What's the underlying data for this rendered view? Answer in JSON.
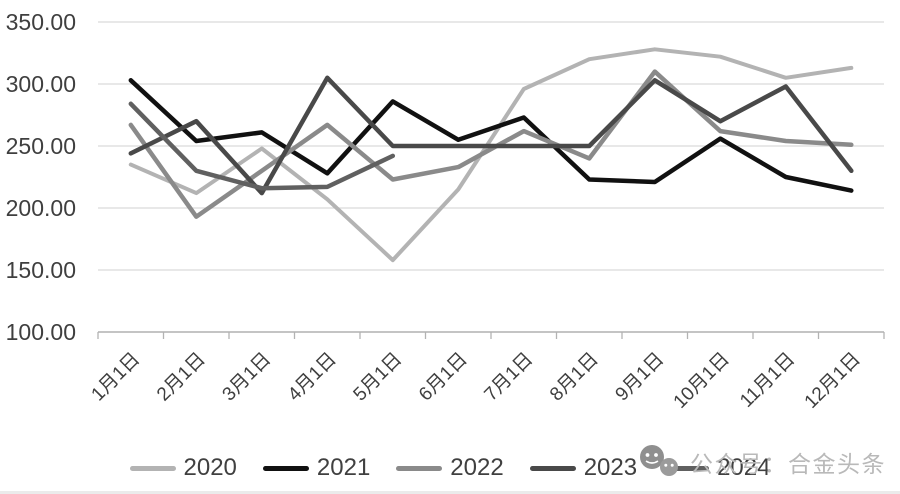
{
  "chart_data": {
    "type": "line",
    "title": "",
    "xlabel": "",
    "ylabel": "",
    "grid": "horizontal",
    "legend_position": "bottom",
    "x_labels": [
      "1月1日",
      "2月1日",
      "3月1日",
      "4月1日",
      "5月1日",
      "6月1日",
      "7月1日",
      "8月1日",
      "9月1日",
      "10月1日",
      "11月1日",
      "12月1日"
    ],
    "y_axis": {
      "min": 100,
      "max": 350,
      "step": 50,
      "tick_labels": [
        "350.00",
        "300.00",
        "250.00",
        "200.00",
        "150.00",
        "100.00"
      ]
    },
    "series": [
      {
        "name": "2020",
        "color": "#b3b3b3",
        "width": 4,
        "values": [
          235,
          212,
          248,
          207,
          158,
          215,
          296,
          320,
          328,
          322,
          305,
          313
        ]
      },
      {
        "name": "2021",
        "color": "#111111",
        "width": 4.5,
        "values": [
          303,
          254,
          261,
          228,
          286,
          255,
          273,
          223,
          221,
          256,
          225,
          214
        ]
      },
      {
        "name": "2022",
        "color": "#8a8a8a",
        "width": 4.5,
        "values": [
          267,
          193,
          230,
          267,
          223,
          233,
          262,
          240,
          310,
          262,
          254,
          251
        ]
      },
      {
        "name": "2023",
        "color": "#494949",
        "width": 4.5,
        "values": [
          244,
          270,
          212,
          305,
          250,
          250,
          250,
          250,
          303,
          270,
          298,
          230
        ]
      },
      {
        "name": "2024",
        "color": "#606060",
        "width": 4.5,
        "values": [
          284,
          230,
          216,
          217,
          242,
          null,
          null,
          null,
          null,
          null,
          null,
          null
        ]
      }
    ]
  },
  "watermark": {
    "text": "公众号：合金头条",
    "icon": "wechat-icon"
  }
}
